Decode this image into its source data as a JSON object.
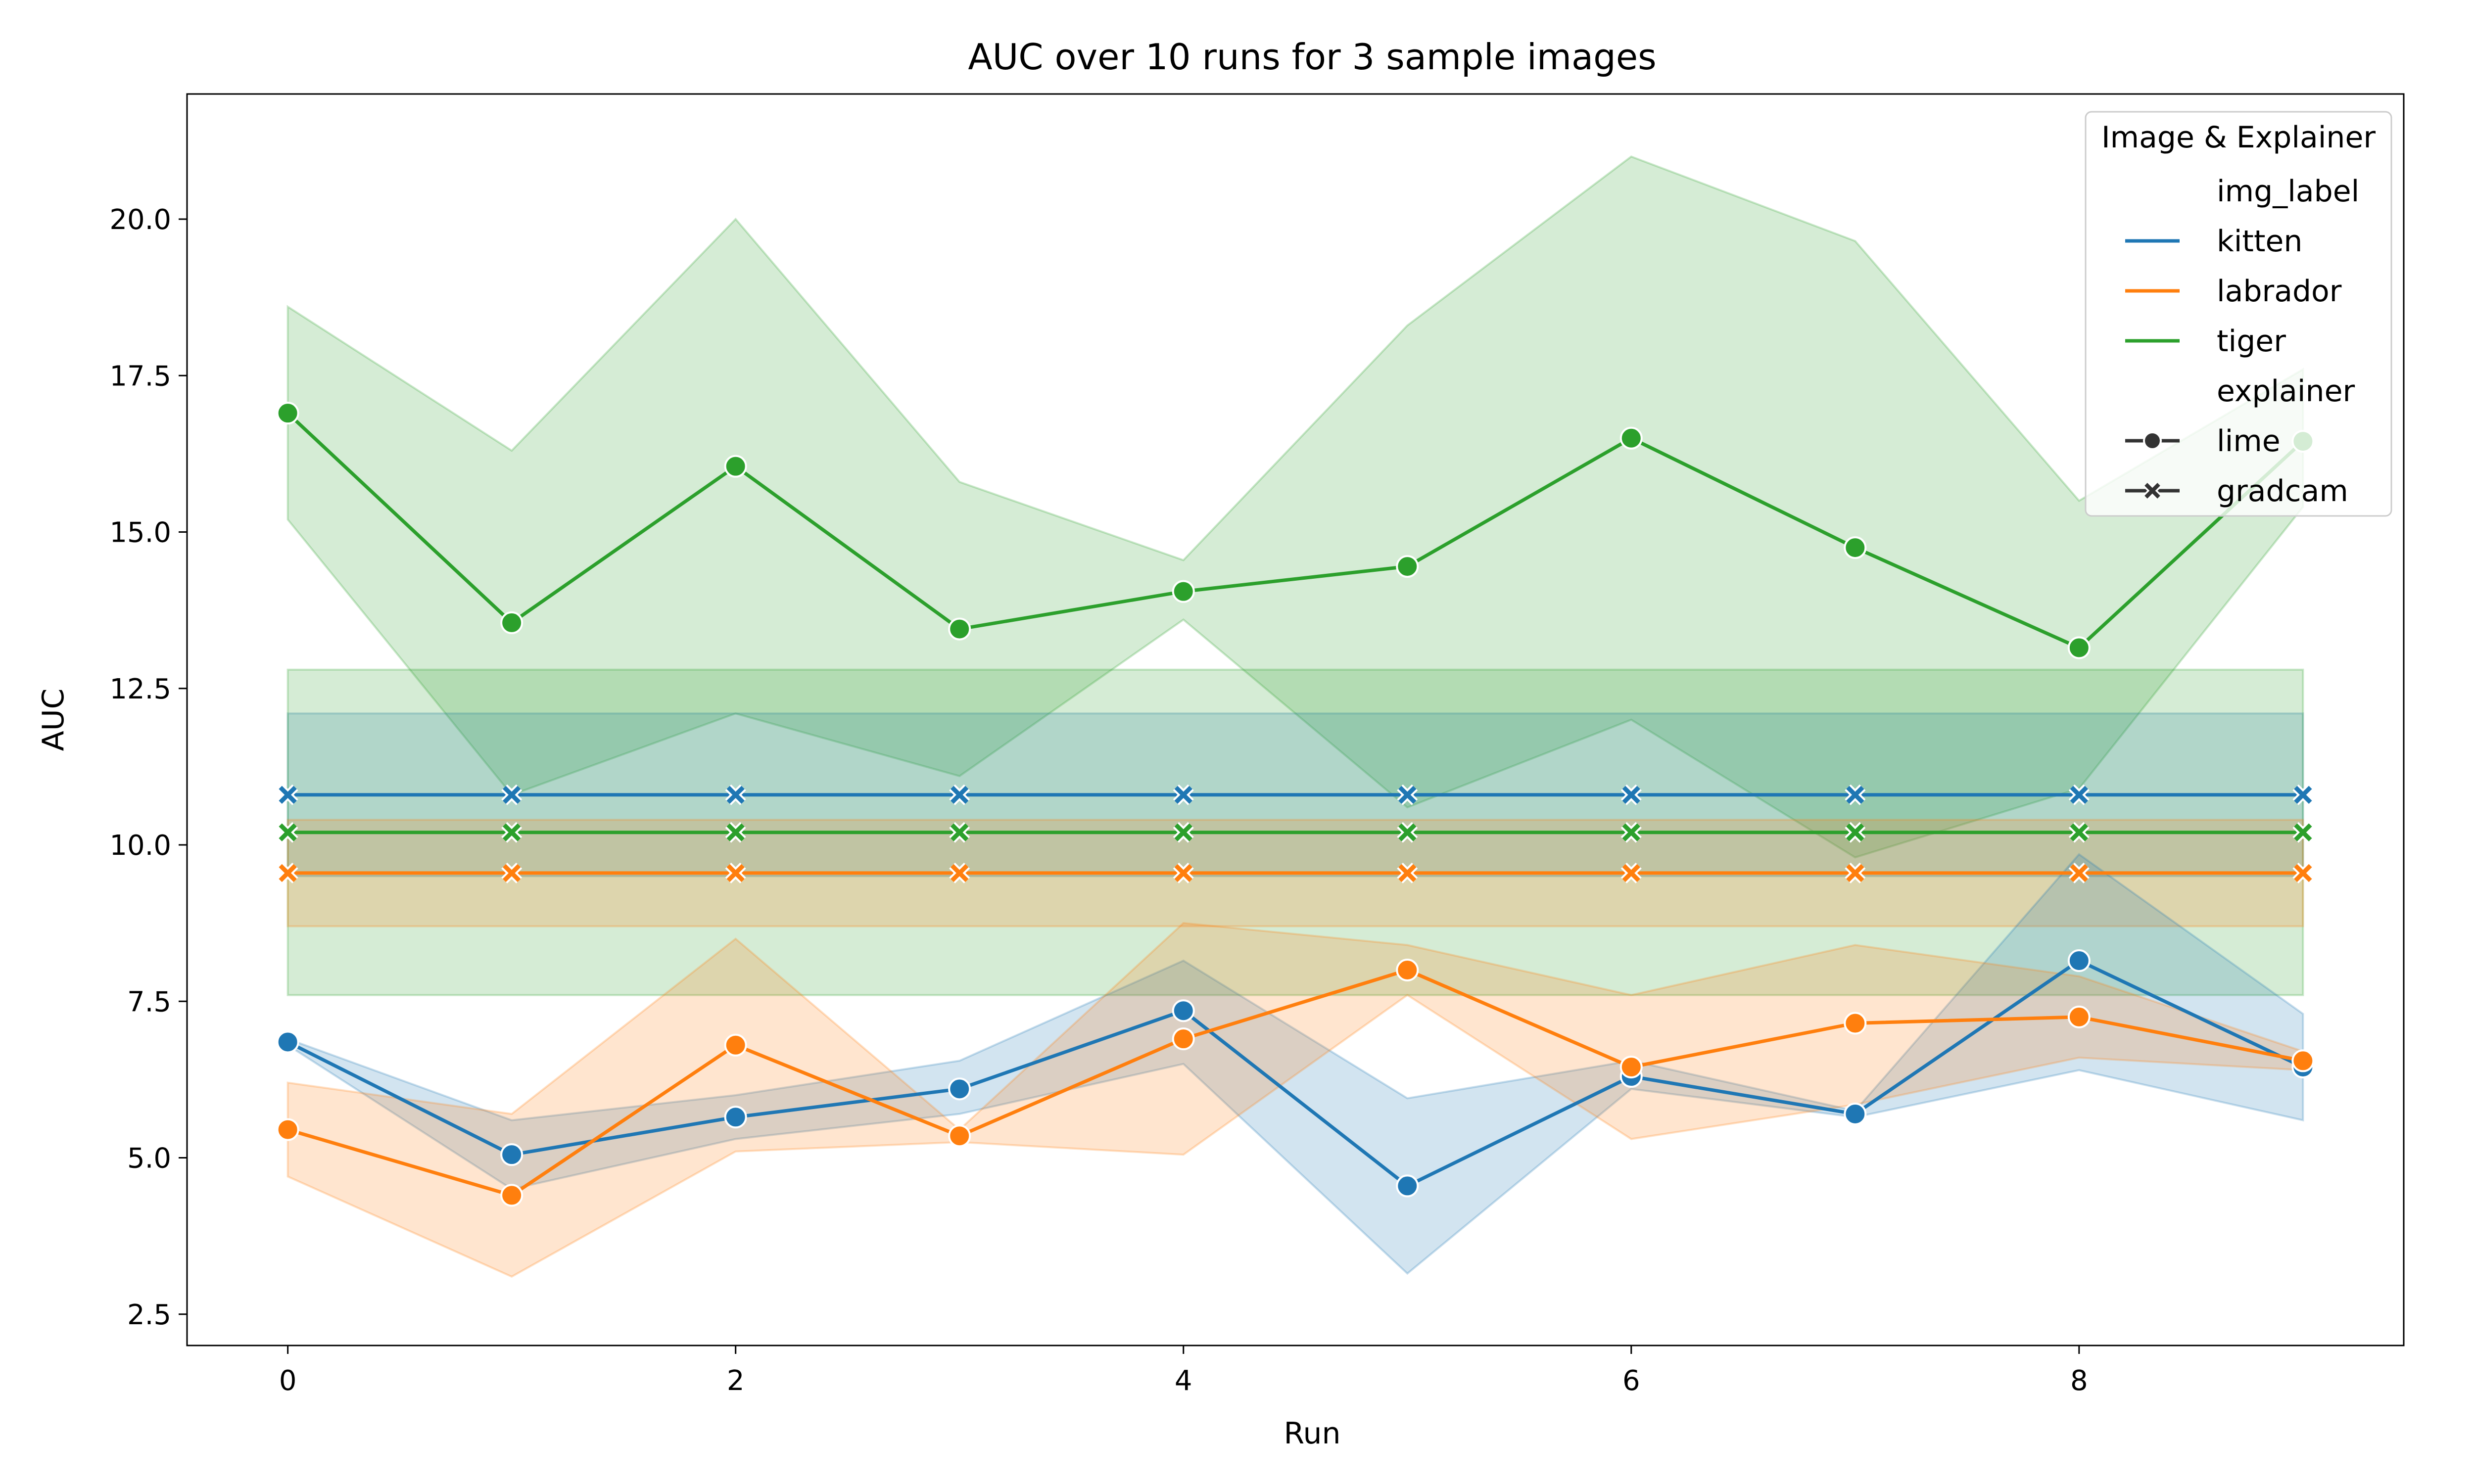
{
  "chart_data": {
    "type": "line",
    "title": "AUC over 10 runs for 3 sample images",
    "xlabel": "Run",
    "ylabel": "AUC",
    "xlim": [
      -0.45,
      9.45
    ],
    "ylim": [
      2.0,
      22.0
    ],
    "xticks": [
      0,
      2,
      4,
      6,
      8
    ],
    "yticks": [
      2.5,
      5.0,
      7.5,
      10.0,
      12.5,
      15.0,
      17.5,
      20.0
    ],
    "xtick_labels": [
      "0",
      "2",
      "4",
      "6",
      "8"
    ],
    "ytick_labels": [
      "2.5",
      "5.0",
      "7.5",
      "10.0",
      "12.5",
      "15.0",
      "17.5",
      "20.0"
    ],
    "grid": false,
    "x": [
      0,
      1,
      2,
      3,
      4,
      5,
      6,
      7,
      8,
      9
    ],
    "series": [
      {
        "img_label": "tiger",
        "explainer": "lime",
        "color": "#2ca02c",
        "marker": "circle",
        "values": [
          16.9,
          13.55,
          16.05,
          13.45,
          14.05,
          14.45,
          16.5,
          14.75,
          13.15,
          16.45
        ],
        "ci_lower": [
          15.2,
          10.8,
          12.1,
          11.1,
          13.6,
          10.6,
          12.0,
          9.8,
          10.9,
          15.4
        ],
        "ci_upper": [
          18.6,
          16.3,
          20.0,
          15.8,
          14.55,
          18.3,
          21.0,
          19.65,
          15.5,
          17.6
        ]
      },
      {
        "img_label": "kitten",
        "explainer": "gradcam",
        "color": "#1f77b4",
        "marker": "x",
        "values": [
          10.8,
          10.8,
          10.8,
          10.8,
          10.8,
          10.8,
          10.8,
          10.8,
          10.8,
          10.8
        ],
        "ci_lower": [
          9.5,
          9.5,
          9.5,
          9.5,
          9.5,
          9.5,
          9.5,
          9.5,
          9.5,
          9.5
        ],
        "ci_upper": [
          12.1,
          12.1,
          12.1,
          12.1,
          12.1,
          12.1,
          12.1,
          12.1,
          12.1,
          12.1
        ]
      },
      {
        "img_label": "tiger",
        "explainer": "gradcam",
        "color": "#2ca02c",
        "marker": "x",
        "values": [
          10.2,
          10.2,
          10.2,
          10.2,
          10.2,
          10.2,
          10.2,
          10.2,
          10.2,
          10.2
        ],
        "ci_lower": [
          7.6,
          7.6,
          7.6,
          7.6,
          7.6,
          7.6,
          7.6,
          7.6,
          7.6,
          7.6
        ],
        "ci_upper": [
          12.8,
          12.8,
          12.8,
          12.8,
          12.8,
          12.8,
          12.8,
          12.8,
          12.8,
          12.8
        ]
      },
      {
        "img_label": "labrador",
        "explainer": "gradcam",
        "color": "#ff7f0e",
        "marker": "x",
        "values": [
          9.55,
          9.55,
          9.55,
          9.55,
          9.55,
          9.55,
          9.55,
          9.55,
          9.55,
          9.55
        ],
        "ci_lower": [
          8.7,
          8.7,
          8.7,
          8.7,
          8.7,
          8.7,
          8.7,
          8.7,
          8.7,
          8.7
        ],
        "ci_upper": [
          10.4,
          10.4,
          10.4,
          10.4,
          10.4,
          10.4,
          10.4,
          10.4,
          10.4,
          10.4
        ]
      },
      {
        "img_label": "kitten",
        "explainer": "lime",
        "color": "#1f77b4",
        "marker": "circle",
        "values": [
          6.85,
          5.05,
          5.65,
          6.1,
          7.35,
          4.55,
          6.3,
          5.7,
          8.15,
          6.45
        ],
        "ci_lower": [
          6.8,
          4.5,
          5.3,
          5.7,
          6.5,
          3.15,
          6.1,
          5.65,
          6.4,
          5.6
        ],
        "ci_upper": [
          6.9,
          5.6,
          6.0,
          6.55,
          8.15,
          5.95,
          6.55,
          5.75,
          9.85,
          7.3
        ]
      },
      {
        "img_label": "labrador",
        "explainer": "lime",
        "color": "#ff7f0e",
        "marker": "circle",
        "values": [
          5.45,
          4.4,
          6.8,
          5.35,
          6.9,
          8.0,
          6.45,
          7.15,
          7.25,
          6.55
        ],
        "ci_lower": [
          4.7,
          3.1,
          5.1,
          5.25,
          5.05,
          7.6,
          5.3,
          5.85,
          6.6,
          6.4
        ],
        "ci_upper": [
          6.2,
          5.7,
          8.5,
          5.45,
          8.75,
          8.4,
          7.6,
          8.4,
          7.9,
          6.7
        ]
      }
    ],
    "legend": {
      "title": "Image & Explainer",
      "placement": "top-right",
      "entries": [
        {
          "label": "img_label",
          "kind": "header"
        },
        {
          "label": "kitten",
          "kind": "line",
          "color": "#1f77b4"
        },
        {
          "label": "labrador",
          "kind": "line",
          "color": "#ff7f0e"
        },
        {
          "label": "tiger",
          "kind": "line",
          "color": "#2ca02c"
        },
        {
          "label": "explainer",
          "kind": "header"
        },
        {
          "label": "lime",
          "kind": "marker",
          "marker": "circle",
          "color": "#333333"
        },
        {
          "label": "gradcam",
          "kind": "marker",
          "marker": "x",
          "color": "#333333"
        }
      ]
    }
  }
}
